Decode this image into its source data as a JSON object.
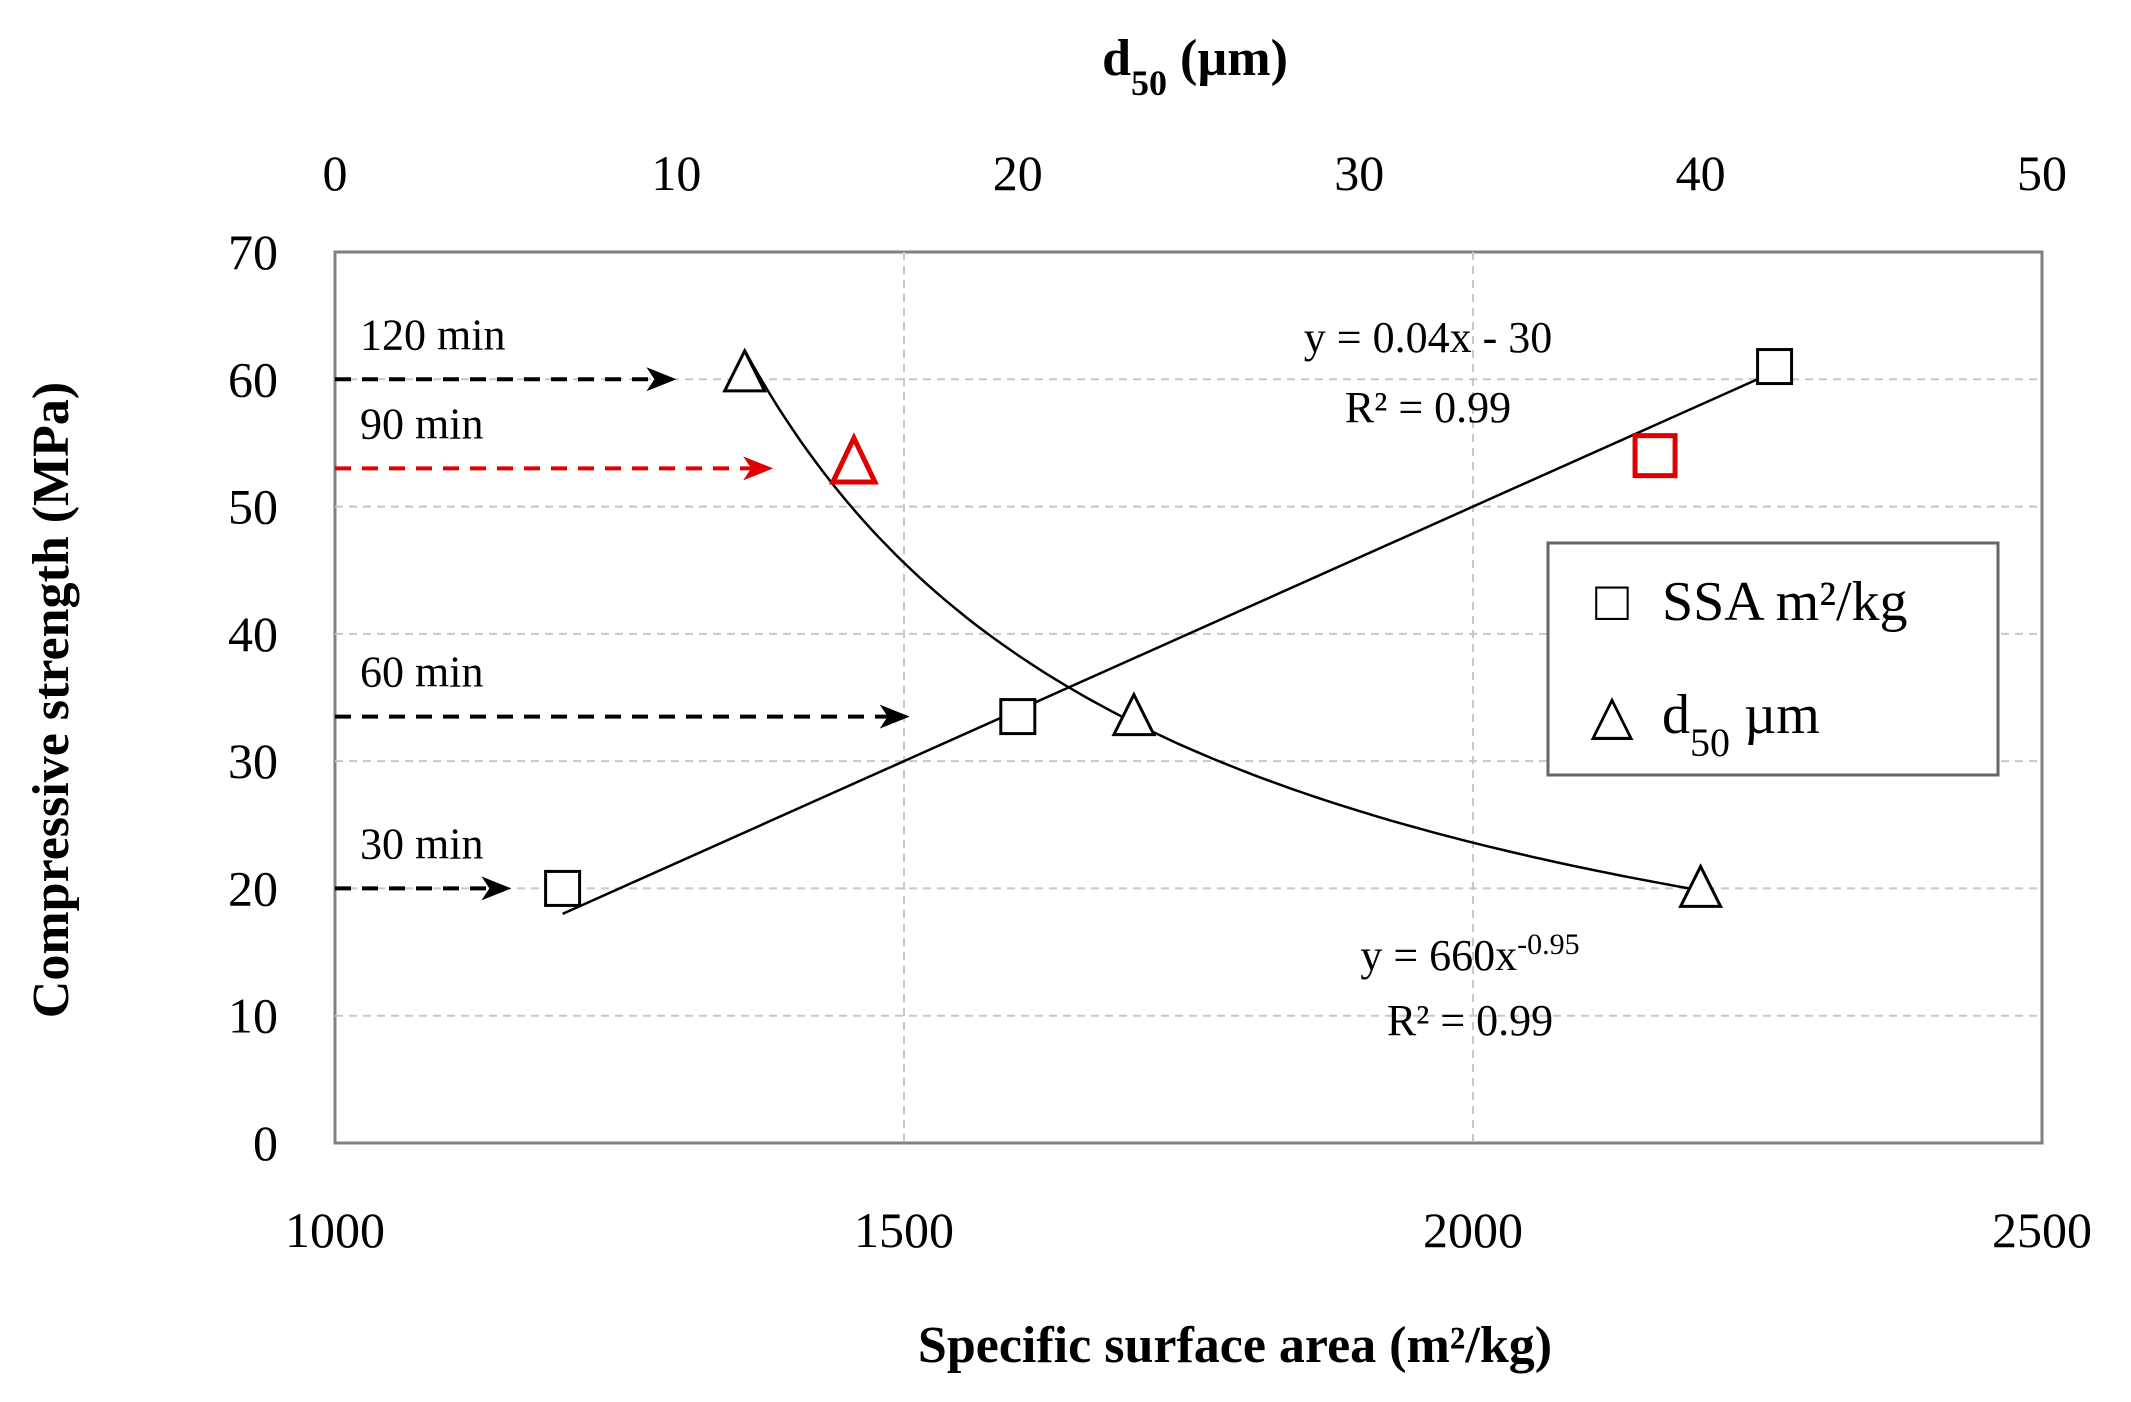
{
  "chart_data": {
    "type": "scatter",
    "title": "",
    "xlabel": "Specific surface area (m²/kg)",
    "x2label": "d50 (µm)",
    "ylabel": "Compressive strength (MPa)",
    "xlim": [
      1000,
      2500
    ],
    "x2lim": [
      0,
      50
    ],
    "ylim": [
      0,
      70
    ],
    "x_ticks": [
      "1000",
      "1500",
      "2000",
      "2500"
    ],
    "x2_ticks": [
      "0",
      "10",
      "20",
      "30",
      "40",
      "50"
    ],
    "y_ticks": [
      "0",
      "10",
      "20",
      "30",
      "40",
      "50",
      "60",
      "70"
    ],
    "grid": true,
    "series": [
      {
        "name": "SSA m²/kg",
        "marker": "square",
        "axis": "bottom",
        "points": [
          {
            "x": 1200,
            "y": 20,
            "color": "#000000"
          },
          {
            "x": 1600,
            "y": 33.5,
            "color": "#000000"
          },
          {
            "x": 2160,
            "y": 54,
            "color": "#e00000"
          },
          {
            "x": 2265,
            "y": 61,
            "color": "#000000"
          }
        ],
        "trend": {
          "type": "linear",
          "slope": 0.04,
          "intercept": -30,
          "x_from": 1200,
          "x_to": 2265,
          "equation": "y = 0.04x - 30",
          "r2": "R² = 0.99"
        }
      },
      {
        "name": "d50 µm",
        "marker": "triangle",
        "axis": "top",
        "points": [
          {
            "x": 12,
            "y": 60.5,
            "color": "#000000"
          },
          {
            "x": 15.2,
            "y": 53.5,
            "color": "#e00000"
          },
          {
            "x": 23.4,
            "y": 33.5,
            "color": "#000000"
          },
          {
            "x": 40,
            "y": 20,
            "color": "#000000"
          }
        ],
        "trend": {
          "type": "power",
          "a": 660,
          "b": -0.95,
          "x_from": 12,
          "x_to": 40,
          "equation_base": "y = 660x",
          "equation_exp": "-0.95",
          "r2": "R² = 0.99"
        }
      }
    ],
    "annotations": [
      {
        "label": "120 min",
        "y": 60,
        "arrow_to_x": 1300,
        "color": "#000000"
      },
      {
        "label": "90 min",
        "y": 53,
        "arrow_to_x": 1385,
        "color": "#e00000"
      },
      {
        "label": "60 min",
        "y": 33.5,
        "arrow_to_x": 1505,
        "color": "#000000"
      },
      {
        "label": "30 min",
        "y": 20,
        "arrow_to_x": 1155,
        "color": "#000000"
      }
    ],
    "legend": {
      "position": "right",
      "entries": [
        {
          "symbol": "□",
          "label": "SSA m²/kg"
        },
        {
          "symbol": "△",
          "label_base": "d",
          "label_sub": "50",
          "label_rest": " µm"
        }
      ]
    }
  }
}
